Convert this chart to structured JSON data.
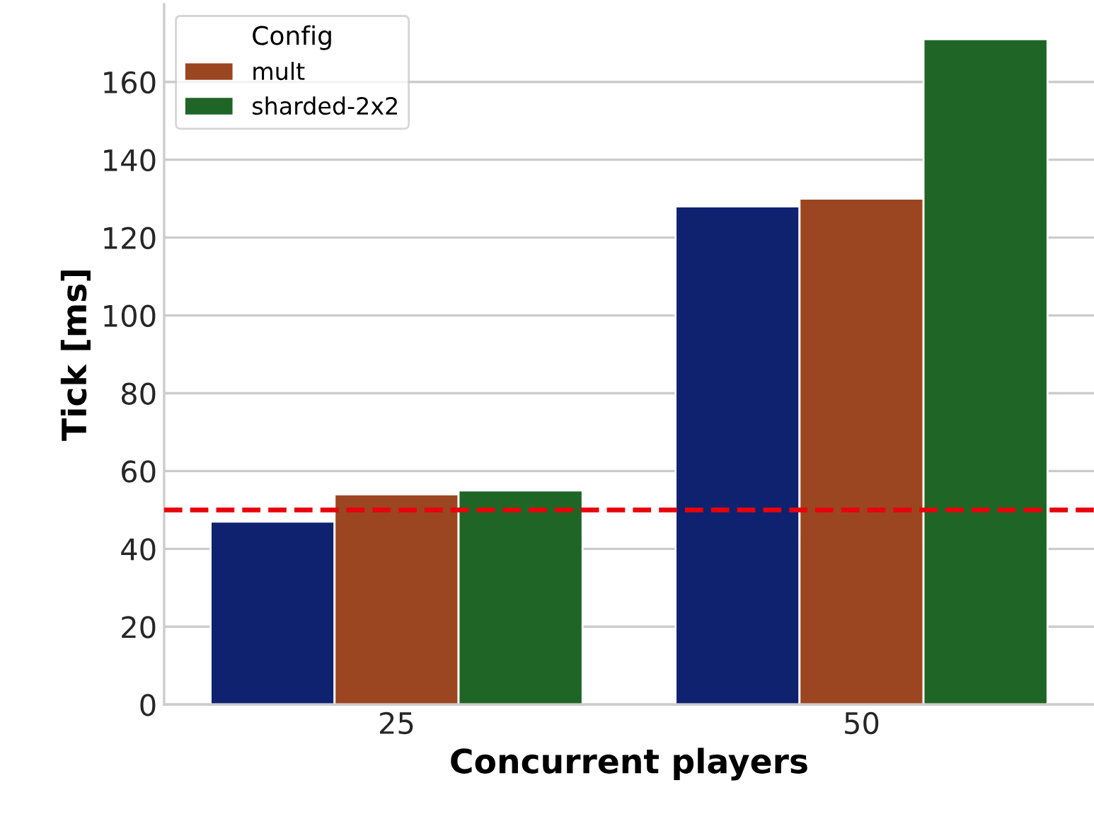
{
  "chart_data": {
    "type": "bar",
    "xlabel": "Concurrent players",
    "ylabel": "Tick [ms]",
    "legend_title": "Config",
    "categories": [
      "25",
      "50"
    ],
    "series": [
      {
        "color": "#0e2270",
        "values": [
          47,
          128
        ]
      },
      {
        "name": "mult",
        "color": "#9c4521",
        "values": [
          54,
          130
        ]
      },
      {
        "name": "sharded-2x2",
        "color": "#1f6526",
        "values": [
          55,
          171
        ]
      }
    ],
    "ylim": [
      0,
      180
    ],
    "yticks": [
      0,
      20,
      40,
      60,
      80,
      100,
      120,
      140,
      160
    ],
    "ref_lines": [
      {
        "axis": "y",
        "value": 50,
        "color": "#e8000b",
        "line_style": "dashed"
      }
    ],
    "grid": "y",
    "legend": "top left"
  }
}
